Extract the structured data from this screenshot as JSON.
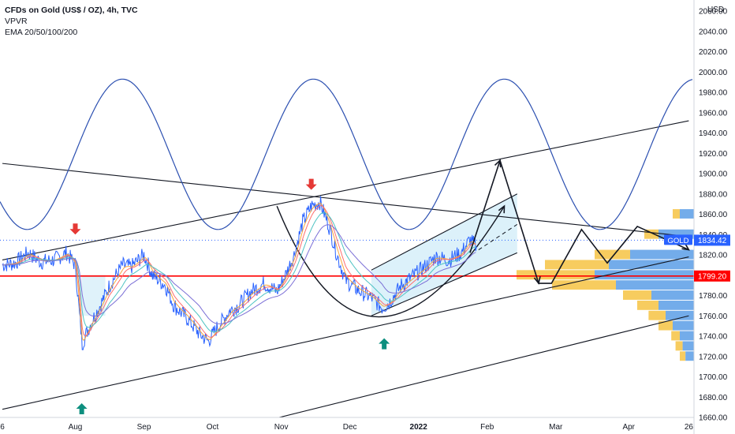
{
  "legend": {
    "title": "CFDs on Gold (US$ / OZ), 4h, TVC",
    "line2": "VPVR",
    "line3": "EMA 20/50/100/200"
  },
  "colors": {
    "price": "#2962ff",
    "ema20": "#f7a53b",
    "ema50": "#ff6d6d",
    "ema100": "#4ec3c3",
    "ema200": "#7b6fd6",
    "sine": "#2b4fb0",
    "support": "#ff0000",
    "gold_label": "#2962ff",
    "arrow_down": "#e53935",
    "arrow_up": "#0d8f7f",
    "vp_yellow": "#f6c343",
    "vp_blue": "#5b9ee6"
  },
  "chart_data": {
    "type": "line",
    "symbol": "GOLD",
    "currency": "USD",
    "yaxis": {
      "range": [
        1650,
        2070
      ],
      "ticks": [
        1660,
        1680,
        1700,
        1720,
        1740,
        1760,
        1780,
        1800,
        1820,
        1840,
        1860,
        1880,
        1900,
        1920,
        1940,
        1960,
        1980,
        2000,
        2020,
        2040,
        2060
      ],
      "tick_labels": [
        "1660.00",
        "1680.00",
        "1700.00",
        "1720.00",
        "1740.00",
        "1760.00",
        "1780.00",
        "1800.00",
        "1820.00",
        "1840.00",
        "1860.00",
        "1880.00",
        "1900.00",
        "1920.00",
        "1940.00",
        "1960.00",
        "1980.00",
        "2000.00",
        "2020.00",
        "2040.00",
        "2060.00"
      ]
    },
    "xaxis": {
      "tick_labels": [
        "6",
        "Aug",
        "Sep",
        "Oct",
        "Nov",
        "Dec",
        "2022",
        "Feb",
        "Mar",
        "Apr",
        "26"
      ],
      "tick_index": [
        0,
        1.7,
        3.3,
        4.9,
        6.5,
        8.1,
        9.7,
        11.3,
        12.9,
        14.6,
        16
      ]
    },
    "price_label": {
      "name": "GOLD",
      "value": "1834.42"
    },
    "support_label": {
      "value": "1799.20"
    },
    "price_series": [
      [
        0,
        1810
      ],
      [
        0.3,
        1812
      ],
      [
        0.6,
        1822
      ],
      [
        0.9,
        1813
      ],
      [
        1.2,
        1815
      ],
      [
        1.5,
        1822
      ],
      [
        1.7,
        1810
      ],
      [
        1.8,
        1760
      ],
      [
        1.86,
        1732
      ],
      [
        1.95,
        1742
      ],
      [
        2.1,
        1756
      ],
      [
        2.3,
        1772
      ],
      [
        2.5,
        1790
      ],
      [
        2.8,
        1810
      ],
      [
        3.0,
        1808
      ],
      [
        3.3,
        1820
      ],
      [
        3.5,
        1800
      ],
      [
        3.8,
        1790
      ],
      [
        4.0,
        1770
      ],
      [
        4.3,
        1758
      ],
      [
        4.6,
        1742
      ],
      [
        4.8,
        1735
      ],
      [
        5.0,
        1748
      ],
      [
        5.3,
        1765
      ],
      [
        5.5,
        1770
      ],
      [
        5.8,
        1784
      ],
      [
        6.1,
        1792
      ],
      [
        6.4,
        1784
      ],
      [
        6.6,
        1800
      ],
      [
        6.8,
        1820
      ],
      [
        7.0,
        1852
      ],
      [
        7.2,
        1868
      ],
      [
        7.4,
        1872
      ],
      [
        7.6,
        1850
      ],
      [
        7.8,
        1820
      ],
      [
        8.0,
        1795
      ],
      [
        8.3,
        1785
      ],
      [
        8.6,
        1778
      ],
      [
        8.85,
        1768
      ],
      [
        9.0,
        1772
      ],
      [
        9.3,
        1790
      ],
      [
        9.6,
        1800
      ],
      [
        9.9,
        1810
      ],
      [
        10.1,
        1818
      ],
      [
        10.4,
        1815
      ],
      [
        10.7,
        1822
      ],
      [
        10.9,
        1835
      ],
      [
        11.05,
        1828
      ]
    ],
    "sine_wave": {
      "center": 1919,
      "amplitude": 74,
      "period_index": 4.45,
      "peak_index": 2.8,
      "end_index": 16.1
    },
    "volume_profile": [
      {
        "price": 1860,
        "yellow": 0.05,
        "blue": 0.1
      },
      {
        "price": 1840,
        "yellow": 0.1,
        "blue": 0.25
      },
      {
        "price": 1820,
        "yellow": 0.25,
        "blue": 0.45
      },
      {
        "price": 1810,
        "yellow": 0.45,
        "blue": 0.6
      },
      {
        "price": 1800,
        "yellow": 0.55,
        "blue": 0.7
      },
      {
        "price": 1790,
        "yellow": 0.45,
        "blue": 0.55
      },
      {
        "price": 1780,
        "yellow": 0.2,
        "blue": 0.3
      },
      {
        "price": 1770,
        "yellow": 0.15,
        "blue": 0.25
      },
      {
        "price": 1760,
        "yellow": 0.12,
        "blue": 0.2
      },
      {
        "price": 1750,
        "yellow": 0.1,
        "blue": 0.15
      },
      {
        "price": 1740,
        "yellow": 0.06,
        "blue": 0.1
      },
      {
        "price": 1730,
        "yellow": 0.05,
        "blue": 0.08
      },
      {
        "price": 1720,
        "yellow": 0.04,
        "blue": 0.06
      }
    ],
    "trendlines": [
      {
        "name": "upper-channel",
        "p1": [
          0,
          1815
        ],
        "p2": [
          16,
          1952
        ]
      },
      {
        "name": "lower-channel",
        "p1": [
          0,
          1668
        ],
        "p2": [
          16,
          1818
        ]
      },
      {
        "name": "bottom-channel",
        "p1": [
          5.5,
          1650
        ],
        "p2": [
          16,
          1760
        ]
      },
      {
        "name": "descending-resistance",
        "p1": [
          0,
          1910
        ],
        "p2": [
          16,
          1838
        ]
      },
      {
        "name": "rising-channel-top",
        "p1": [
          8.6,
          1805
        ],
        "p2": [
          12.0,
          1880
        ]
      },
      {
        "name": "rising-channel-bottom",
        "p1": [
          8.6,
          1760
        ],
        "p2": [
          12.0,
          1822
        ]
      }
    ],
    "support_level": 1799.2,
    "projection_path": [
      [
        10.9,
        1822
      ],
      [
        11.6,
        1913
      ],
      [
        12.5,
        1792
      ],
      [
        12.8,
        1792
      ],
      [
        13.5,
        1845
      ],
      [
        14.1,
        1812
      ],
      [
        14.8,
        1848
      ],
      [
        16.0,
        1825
      ]
    ],
    "arrows": [
      {
        "type": "down",
        "index": 1.7,
        "price": 1840
      },
      {
        "type": "down",
        "index": 7.2,
        "price": 1884
      },
      {
        "type": "up",
        "index": 1.85,
        "price": 1674
      },
      {
        "type": "up",
        "index": 8.9,
        "price": 1738
      }
    ]
  }
}
